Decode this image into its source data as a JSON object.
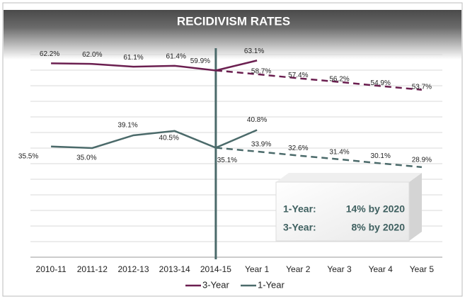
{
  "chart_data": {
    "type": "line",
    "title": "RECIDIVISM RATES",
    "categories": [
      "2010-11",
      "2011-12",
      "2012-13",
      "2013-14",
      "2014-15",
      "Year 1",
      "Year 2",
      "Year 3",
      "Year 4",
      "Year 5"
    ],
    "series": [
      {
        "name": "3-Year",
        "color": "#6b1f50",
        "values": [
          62.2,
          62.0,
          61.1,
          61.4,
          59.9,
          63.1,
          null,
          null,
          null,
          null
        ],
        "value_labels": [
          "62.2%",
          "62.0%",
          "61.1%",
          "61.4%",
          "59.9%",
          "63.1%",
          null,
          null,
          null,
          null
        ]
      },
      {
        "color": "#6b1f50",
        "dashed": true,
        "values": [
          null,
          null,
          null,
          null,
          59.9,
          58.7,
          57.4,
          56.2,
          54.9,
          53.7
        ],
        "value_labels": [
          null,
          null,
          null,
          null,
          null,
          "58.7%",
          "57.4%",
          "56.2%",
          "54.9%",
          "53.7%"
        ]
      },
      {
        "name": "1-Year",
        "color": "#4b6a6a",
        "values": [
          35.5,
          35.0,
          39.1,
          40.5,
          35.1,
          40.8,
          null,
          null,
          null,
          null
        ],
        "value_labels": [
          "35.5%",
          "35.0%",
          "39.1%",
          "40.5%",
          "35.1%",
          "40.8%",
          null,
          null,
          null,
          null
        ]
      },
      {
        "color": "#4b6a6a",
        "dashed": true,
        "values": [
          null,
          null,
          null,
          null,
          35.1,
          33.9,
          32.6,
          31.4,
          30.1,
          28.9
        ],
        "value_labels": [
          null,
          null,
          null,
          null,
          null,
          "33.9%",
          "32.6%",
          "31.4%",
          "30.1%",
          "28.9%"
        ]
      }
    ],
    "ylim": [
      0,
      65
    ],
    "yticks": [
      0,
      5,
      10,
      15,
      20,
      25,
      30,
      35,
      40,
      45,
      50,
      55,
      60,
      65
    ],
    "grid": true,
    "annotations": [
      {
        "label": "1-Year:",
        "text": "14% by 2020"
      },
      {
        "label": "3-Year:",
        "text": "8% by 2020"
      }
    ]
  }
}
